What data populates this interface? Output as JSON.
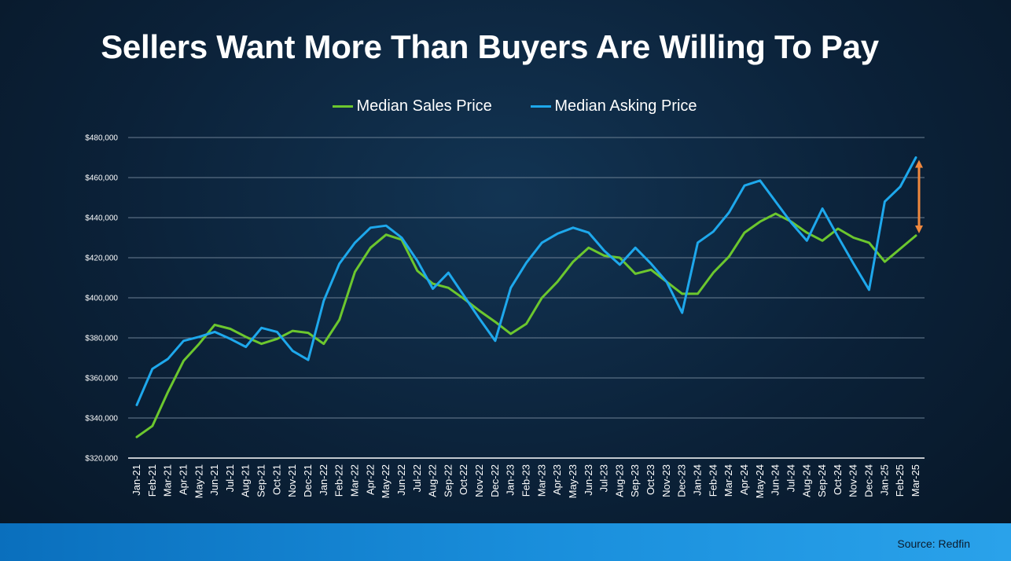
{
  "title": "Sellers Want More Than Buyers Are Willing To Pay",
  "source": "Source: Redfin",
  "colors": {
    "sales": "#6cc72e",
    "asking": "#1ea8ec",
    "arrow": "#f0883e",
    "grid": "#6b7f93"
  },
  "chart_data": {
    "type": "line",
    "categories": [
      "Jan-21",
      "Feb-21",
      "Mar-21",
      "Apr-21",
      "May-21",
      "Jun-21",
      "Jul-21",
      "Aug-21",
      "Sep-21",
      "Oct-21",
      "Nov-21",
      "Dec-21",
      "Jan-22",
      "Feb-22",
      "Mar-22",
      "Apr-22",
      "May-22",
      "Jun-22",
      "Jul-22",
      "Aug-22",
      "Sep-22",
      "Oct-22",
      "Nov-22",
      "Dec-22",
      "Jan-23",
      "Feb-23",
      "Mar-23",
      "Apr-23",
      "May-23",
      "Jun-23",
      "Jul-23",
      "Aug-23",
      "Sep-23",
      "Oct-23",
      "Nov-23",
      "Dec-23",
      "Jan-24",
      "Feb-24",
      "Mar-24",
      "Apr-24",
      "May-24",
      "Jun-24",
      "Jul-24",
      "Aug-24",
      "Sep-24",
      "Oct-24",
      "Nov-24",
      "Dec-24",
      "Jan-25",
      "Feb-25",
      "Mar-25"
    ],
    "series": [
      {
        "name": "Median Sales Price",
        "values": [
          330500,
          336000,
          353000,
          368500,
          377000,
          386500,
          384500,
          380500,
          377000,
          379500,
          383500,
          382500,
          377000,
          389000,
          413000,
          425000,
          431500,
          429000,
          413500,
          407000,
          405000,
          399500,
          393500,
          388000,
          382000,
          387000,
          400000,
          408000,
          418000,
          425000,
          421000,
          420000,
          412000,
          414000,
          408000,
          402000,
          402000,
          412500,
          420500,
          432500,
          438000,
          442000,
          438000,
          432500,
          428500,
          434500,
          430000,
          427500,
          418000,
          424500,
          431000
        ]
      },
      {
        "name": "Median Asking Price",
        "values": [
          346500,
          364500,
          369500,
          378500,
          380500,
          383000,
          379500,
          375500,
          385000,
          383000,
          373500,
          369000,
          398500,
          417000,
          427500,
          435000,
          436000,
          430000,
          418500,
          404500,
          412500,
          401000,
          389500,
          378500,
          405000,
          417500,
          427500,
          432000,
          435000,
          432500,
          423500,
          416500,
          425000,
          417000,
          408000,
          392500,
          427500,
          433000,
          442500,
          456000,
          458500,
          448000,
          437500,
          428500,
          444500,
          430500,
          417000,
          404000,
          448000,
          455500,
          470000
        ]
      }
    ],
    "ylim": [
      320000,
      480000
    ],
    "ytick_labels": [
      "$320,000",
      "$340,000",
      "$360,000",
      "$380,000",
      "$400,000",
      "$420,000",
      "$440,000",
      "$460,000",
      "$480,000"
    ],
    "grid": true,
    "legend": "top-center"
  }
}
